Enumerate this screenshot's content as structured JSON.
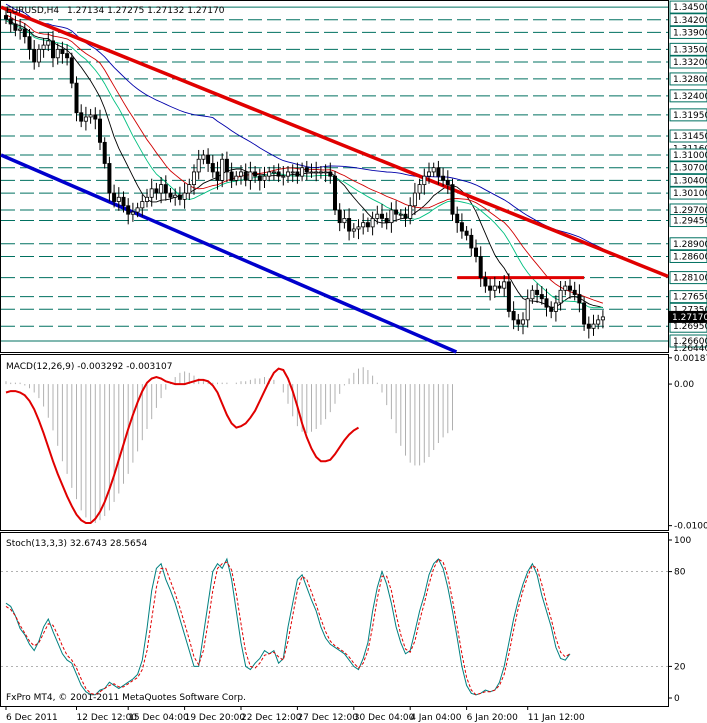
{
  "window": {
    "title": "EURUSD,H4",
    "ohlc": "1.27134 1.27275 1.27132 1.27170",
    "footer": "FxPro MT4, © 2001-2011 MetaQuotes Software Corp."
  },
  "colors": {
    "background": "#ffffff",
    "candle": "#000000",
    "level_line": "#007060",
    "red_trend": "#e00000",
    "blue_trend": "#0000cc",
    "ma_fast": "#000000",
    "ma_mid": "#d00000",
    "ma_green": "#00c080",
    "ma_slow": "#0000aa",
    "macd_hist": "#b0b0b0",
    "macd_signal": "#e00000",
    "stoch_main": "#008080",
    "stoch_signal": "#e00000",
    "price_tag_bg": "#ffffff",
    "current_tag_bg": "#000000"
  },
  "chart_data": [
    {
      "type": "candlestick",
      "title": "EURUSD,H4",
      "ylim": [
        1.2634,
        1.3462
      ],
      "price_levels": [
        1.345,
        1.342,
        1.339,
        1.335,
        1.332,
        1.328,
        1.324,
        1.3195,
        1.3145,
        1.31,
        1.307,
        1.304,
        1.301,
        1.297,
        1.2945,
        1.289,
        1.286,
        1.281,
        1.2765,
        1.2735,
        1.2695,
        1.266
      ],
      "axis_labels": [
        "1.34500",
        "1.34200",
        "1.33900",
        "1.33500",
        "1.33200",
        "1.32800",
        "1.32400",
        "1.31950",
        "1.31450",
        "1.31160",
        "1.31000",
        "1.30700",
        "1.30400",
        "1.30100",
        "1.29700",
        "1.29450",
        "1.28900",
        "1.28600",
        "1.28100",
        "1.27650",
        "1.27350",
        "1.26950",
        "1.26600",
        "1.26440"
      ],
      "current_price": 1.2717,
      "current_price_label": "1.27170",
      "close": [
        1.3422,
        1.341,
        1.3395,
        1.3398,
        1.338,
        1.335,
        1.332,
        1.335,
        1.336,
        1.337,
        1.333,
        1.335,
        1.334,
        1.333,
        1.327,
        1.32,
        1.318,
        1.319,
        1.3195,
        1.3185,
        1.313,
        1.308,
        1.301,
        1.299,
        1.3,
        1.298,
        1.296,
        1.2965,
        1.2975,
        1.299,
        1.3,
        1.302,
        1.301,
        1.303,
        1.301,
        1.3,
        1.3005,
        1.2995,
        1.301,
        1.303,
        1.306,
        1.309,
        1.31,
        1.308,
        1.306,
        1.304,
        1.309,
        1.306,
        1.304,
        1.305,
        1.306,
        1.304,
        1.306,
        1.305,
        1.304,
        1.305,
        1.306,
        1.306,
        1.305,
        1.305,
        1.306,
        1.306,
        1.305,
        1.307,
        1.306,
        1.306,
        1.306,
        1.306,
        1.306,
        1.305,
        1.297,
        1.294,
        1.295,
        1.292,
        1.2925,
        1.293,
        1.294,
        1.293,
        1.295,
        1.296,
        1.295,
        1.294,
        1.297,
        1.296,
        1.296,
        1.295,
        1.298,
        1.301,
        1.303,
        1.305,
        1.306,
        1.307,
        1.305,
        1.304,
        1.303,
        1.296,
        1.294,
        1.292,
        1.291,
        1.288,
        1.286,
        1.281,
        1.279,
        1.278,
        1.279,
        1.2785,
        1.28,
        1.273,
        1.271,
        1.27,
        1.271,
        1.276,
        1.278,
        1.277,
        1.276,
        1.274,
        1.273,
        1.275,
        1.278,
        1.279,
        1.278,
        1.277,
        1.275,
        1.27,
        1.269,
        1.27,
        1.271,
        1.2717
      ],
      "red_trendline": [
        [
          1.3445,
          0
        ],
        [
          1.2875,
          127
        ]
      ],
      "blue_trendline": [
        [
          1.3095,
          0
        ],
        [
          1.2638,
          95
        ]
      ],
      "horizontal_segment": {
        "price": 1.281,
        "from": 96,
        "to": 123
      },
      "x_ticks": [
        {
          "label": "6 Dec 2011",
          "index": 0
        },
        {
          "label": "12 Dec 12:00",
          "index": 15
        },
        {
          "label": "15 Dec 04:00",
          "index": 26
        },
        {
          "label": "19 Dec 20:00",
          "index": 38
        },
        {
          "label": "22 Dec 12:00",
          "index": 50
        },
        {
          "label": "27 Dec 12:00",
          "index": 62
        },
        {
          "label": "30 Dec 04:00",
          "index": 74
        },
        {
          "label": "4 Jan 04:00",
          "index": 86
        },
        {
          "label": "6 Jan 20:00",
          "index": 98
        },
        {
          "label": "11 Jan 12:00",
          "index": 111
        }
      ]
    },
    {
      "type": "line",
      "title": "MACD(12,26,9) -0.003292 -0.003107",
      "ylim": [
        -0.0104,
        0.002
      ],
      "y_ticks": [
        {
          "label": "0.00187",
          "value": 0.00187
        },
        {
          "label": "0.00",
          "value": 0.0
        },
        {
          "label": "-0.01009",
          "value": -0.01009
        }
      ],
      "histogram": [
        0.0002,
        0.0001,
        0.0001,
        0.0001,
        -0.0001,
        -0.0003,
        -0.0006,
        -0.001,
        -0.0016,
        -0.0024,
        -0.0033,
        -0.0044,
        -0.0055,
        -0.0064,
        -0.0074,
        -0.0082,
        -0.009,
        -0.0095,
        -0.0098,
        -0.0099,
        -0.0097,
        -0.0094,
        -0.009,
        -0.0084,
        -0.0078,
        -0.0071,
        -0.0064,
        -0.0056,
        -0.0048,
        -0.004,
        -0.0032,
        -0.0025,
        -0.0017,
        -0.001,
        -0.0004,
        0.0001,
        0.0005,
        0.0008,
        0.0009,
        0.0008,
        0.0006,
        0.0004,
        0.0003,
        0.0002,
        0.0001,
        0.0001,
        0.0001,
        0.0001,
        0.0,
        0.0001,
        0.0002,
        0.0002,
        0.0003,
        0.0004,
        0.0004,
        0.0005,
        0.0004,
        0.0003,
        0.0,
        -0.0006,
        -0.0014,
        -0.0023,
        -0.003,
        -0.0034,
        -0.0035,
        -0.0034,
        -0.0032,
        -0.0029,
        -0.0025,
        -0.002,
        -0.0014,
        -0.0007,
        -0.0001,
        0.0004,
        0.0008,
        0.0011,
        0.0012,
        0.001,
        0.0006,
        0.0001,
        -0.0006,
        -0.0015,
        -0.0025,
        -0.0035,
        -0.0044,
        -0.0051,
        -0.0056,
        -0.0058,
        -0.0058,
        -0.0056,
        -0.0052,
        -0.0047,
        -0.0042,
        -0.0038,
        -0.0035,
        -0.0033
      ],
      "signal": [
        -0.0006,
        -0.0005,
        -0.0005,
        -0.0006,
        -0.0008,
        -0.0012,
        -0.0018,
        -0.0026,
        -0.0035,
        -0.0045,
        -0.0055,
        -0.0064,
        -0.0072,
        -0.008,
        -0.0087,
        -0.0093,
        -0.0097,
        -0.0099,
        -0.0099,
        -0.0096,
        -0.0091,
        -0.0084,
        -0.0075,
        -0.0065,
        -0.0054,
        -0.0043,
        -0.0032,
        -0.0022,
        -0.0013,
        -0.0005,
        0.0001,
        0.0004,
        0.0005,
        0.0004,
        0.0002,
        0.0001,
        0.0,
        0.0,
        0.0,
        0.0001,
        0.0002,
        0.0003,
        0.0003,
        0.0002,
        -0.0001,
        -0.0006,
        -0.0014,
        -0.0022,
        -0.0028,
        -0.0031,
        -0.003,
        -0.0028,
        -0.0024,
        -0.0019,
        -0.0012,
        -0.0005,
        0.0002,
        0.0008,
        0.0011,
        0.001,
        0.0004,
        -0.0005,
        -0.0016,
        -0.0028,
        -0.0038,
        -0.0046,
        -0.0052,
        -0.0055,
        -0.0055,
        -0.0054,
        -0.005,
        -0.0045,
        -0.004,
        -0.0036,
        -0.0033,
        -0.0031
      ],
      "signal_start_index": 0
    },
    {
      "type": "line",
      "title": "Stoch(13,3,3) 32.6743 28.5654",
      "ylim": [
        0,
        100
      ],
      "y_ticks": [
        {
          "label": "100",
          "value": 100
        },
        {
          "label": "80",
          "value": 80
        },
        {
          "label": "20",
          "value": 20
        },
        {
          "label": "0",
          "value": 0
        }
      ],
      "main": [
        60,
        58,
        52,
        44,
        40,
        34,
        30,
        36,
        45,
        50,
        42,
        35,
        28,
        24,
        22,
        15,
        8,
        4,
        2,
        2,
        5,
        6,
        10,
        8,
        6,
        8,
        10,
        12,
        15,
        24,
        44,
        68,
        82,
        85,
        75,
        68,
        60,
        50,
        40,
        30,
        20,
        20,
        40,
        60,
        80,
        85,
        82,
        88,
        75,
        55,
        35,
        20,
        18,
        22,
        25,
        30,
        28,
        30,
        22,
        25,
        45,
        60,
        75,
        78,
        70,
        62,
        55,
        45,
        38,
        34,
        32,
        30,
        28,
        24,
        20,
        18,
        25,
        35,
        55,
        70,
        80,
        72,
        60,
        45,
        35,
        28,
        30,
        42,
        55,
        65,
        78,
        85,
        88,
        82,
        70,
        55,
        38,
        20,
        8,
        3,
        2,
        3,
        5,
        4,
        5,
        10,
        20,
        35,
        50,
        62,
        72,
        80,
        85,
        78,
        65,
        55,
        45,
        32,
        25,
        24,
        28
      ],
      "signal": [
        58,
        56,
        52,
        46,
        41,
        36,
        33,
        35,
        41,
        47,
        46,
        40,
        33,
        27,
        24,
        19,
        12,
        6,
        3,
        2,
        4,
        6,
        8,
        9,
        7,
        7,
        9,
        11,
        13,
        18,
        30,
        50,
        70,
        82,
        82,
        74,
        66,
        57,
        47,
        37,
        26,
        21,
        30,
        48,
        68,
        82,
        85,
        86,
        81,
        66,
        47,
        29,
        20,
        19,
        22,
        27,
        28,
        29,
        26,
        24,
        36,
        52,
        68,
        77,
        75,
        67,
        59,
        50,
        42,
        36,
        33,
        31,
        29,
        26,
        22,
        19,
        22,
        30,
        45,
        63,
        77,
        77,
        68,
        53,
        40,
        31,
        29,
        36,
        49,
        60,
        72,
        82,
        88,
        86,
        77,
        62,
        45,
        28,
        13,
        5,
        2,
        3,
        4,
        4,
        5,
        8,
        15,
        28,
        43,
        57,
        68,
        77,
        84,
        82,
        72,
        60,
        50,
        38,
        29,
        26,
        28
      ]
    }
  ],
  "labels": {
    "macd_zero": "0.00"
  }
}
